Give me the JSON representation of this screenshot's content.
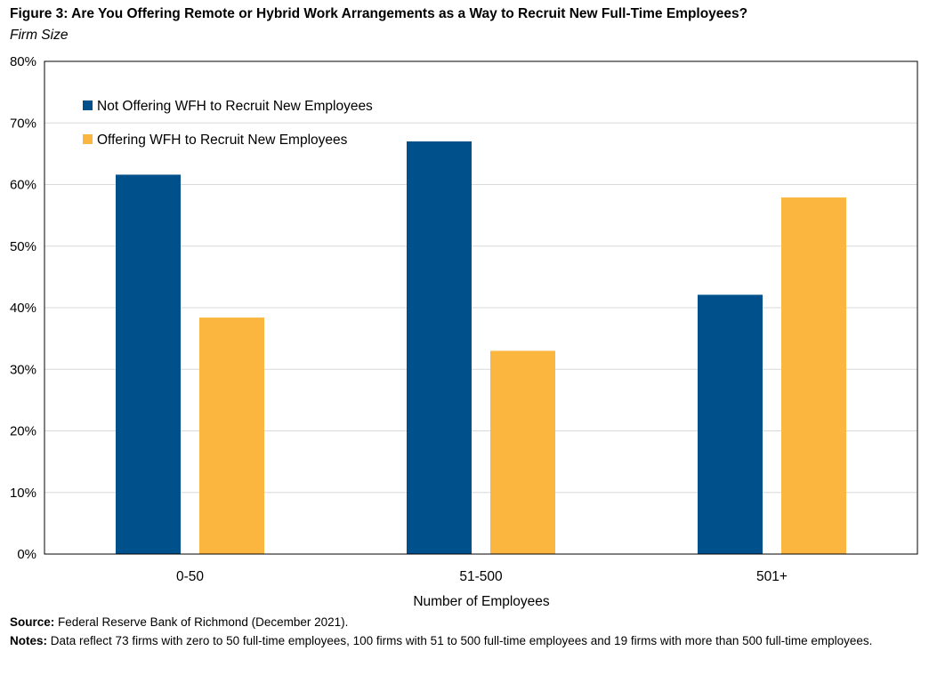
{
  "title": "Figure 3: Are You Offering Remote or Hybrid Work Arrangements as a Way to Recruit New Full-Time Employees?",
  "subtitle": "Firm Size",
  "source_label": "Source:",
  "source_text": "Federal Reserve Bank of Richmond (December 2021).",
  "notes_label": "Notes:",
  "notes_text": "Data reflect 73 firms with zero to 50 full-time employees, 100 firms with 51 to 500 full-time employees and 19 firms with more than 500 full-time employees.",
  "colors": {
    "not_offering": "#00508b",
    "offering": "#fbb63f",
    "grid": "#d9d9d9",
    "frame": "#000000"
  },
  "chart_data": {
    "type": "bar",
    "title": "Figure 3: Are You Offering Remote or Hybrid Work Arrangements as a Way to Recruit New Full-Time Employees?",
    "subtitle": "Firm Size",
    "categories": [
      "0-50",
      "51-500",
      "501+"
    ],
    "series": [
      {
        "name": "Not Offering WFH to Recruit New Employees",
        "values": [
          61.6,
          67.0,
          42.1
        ],
        "color": "#00508b"
      },
      {
        "name": "Offering WFH to Recruit New Employees",
        "values": [
          38.4,
          33.0,
          57.9
        ],
        "color": "#fbb63f"
      }
    ],
    "xlabel": "Number of Employees",
    "ylabel": "",
    "ylim": [
      0,
      80
    ],
    "yticks": [
      0,
      10,
      20,
      30,
      40,
      50,
      60,
      70,
      80
    ],
    "ytick_labels": [
      "0%",
      "10%",
      "20%",
      "30%",
      "40%",
      "50%",
      "60%",
      "70%",
      "80%"
    ],
    "grid": true,
    "legend_position": "top-left"
  }
}
